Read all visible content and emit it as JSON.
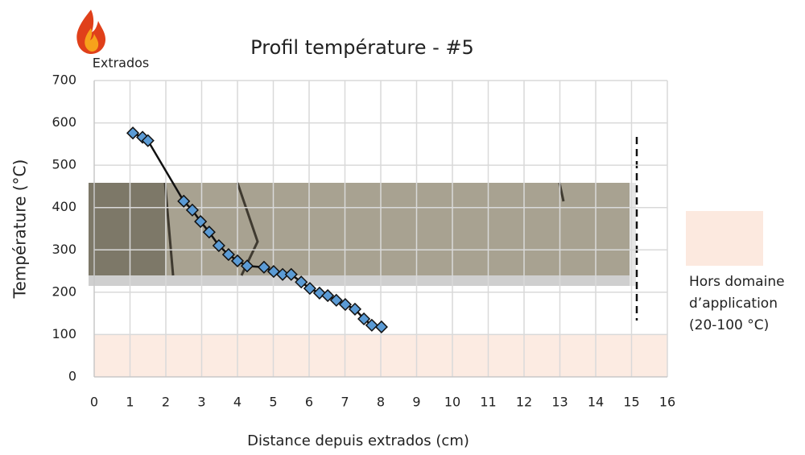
{
  "chart_data": {
    "type": "line",
    "title": "Profil température - #5",
    "x_label": "Distance depuis extrados (cm)",
    "y_label": "Température (°C)",
    "corner_label": "Extrados",
    "x": [
      1.08,
      1.35,
      1.5,
      2.5,
      2.74,
      2.97,
      3.21,
      3.48,
      3.75,
      4.0,
      4.27,
      4.74,
      5.01,
      5.26,
      5.5,
      5.78,
      6.02,
      6.29,
      6.52,
      6.76,
      7.01,
      7.28,
      7.53,
      7.75,
      8.02
    ],
    "values": [
      576,
      566,
      558,
      415,
      394,
      367,
      342,
      310,
      289,
      274,
      262,
      259,
      249,
      242,
      242,
      224,
      209,
      198,
      192,
      181,
      171,
      160,
      137,
      122,
      118
    ],
    "marker_color": "#5b9bd5",
    "line_color": "#111111",
    "shaded_band": [
      0,
      100
    ],
    "band_color": "#fce9df",
    "band_legend": [
      "Hors domaine",
      "d’application",
      "(20-100 °C)"
    ],
    "xlim": [
      0,
      16
    ],
    "xticks": [
      0,
      1,
      2,
      3,
      4,
      5,
      6,
      7,
      8,
      9,
      10,
      11,
      12,
      13,
      14,
      15,
      16
    ],
    "ylim": [
      0,
      700
    ],
    "yticks": [
      0,
      100,
      200,
      300,
      400,
      500,
      600,
      700
    ],
    "grid": true
  }
}
